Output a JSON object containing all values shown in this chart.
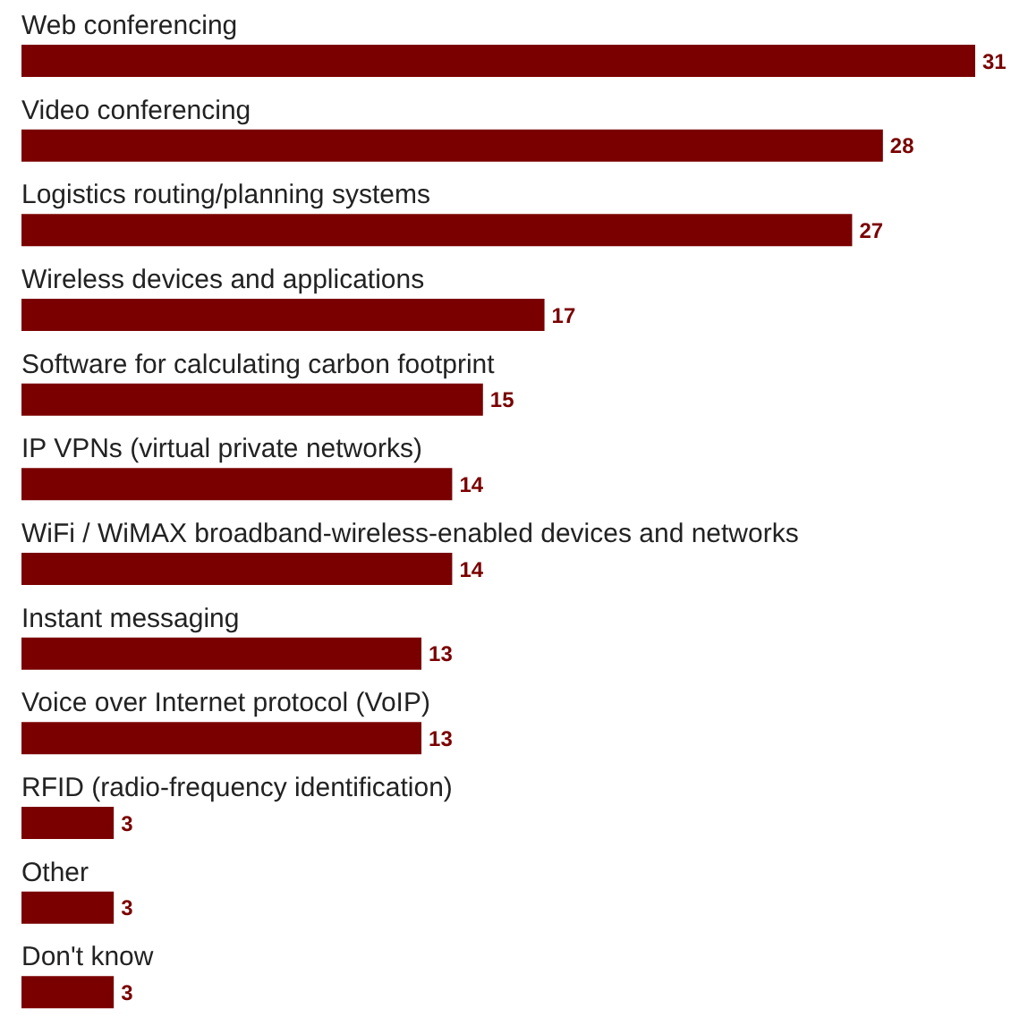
{
  "chart_data": {
    "type": "bar",
    "orientation": "horizontal",
    "categories": [
      "Web conferencing",
      "Video conferencing",
      "Logistics routing/planning systems",
      "Wireless devices and applications",
      "Software for calculating carbon footprint",
      "IP VPNs (virtual private networks)",
      "WiFi / WiMAX broadband-wireless-enabled devices and networks",
      "Instant messaging",
      "Voice over Internet protocol (VoIP)",
      "RFID (radio-frequency identification)",
      "Other",
      "Don't know"
    ],
    "values": [
      31,
      28,
      27,
      17,
      15,
      14,
      14,
      13,
      13,
      3,
      3,
      3
    ],
    "color": "#7a0000",
    "data_labels": true
  }
}
